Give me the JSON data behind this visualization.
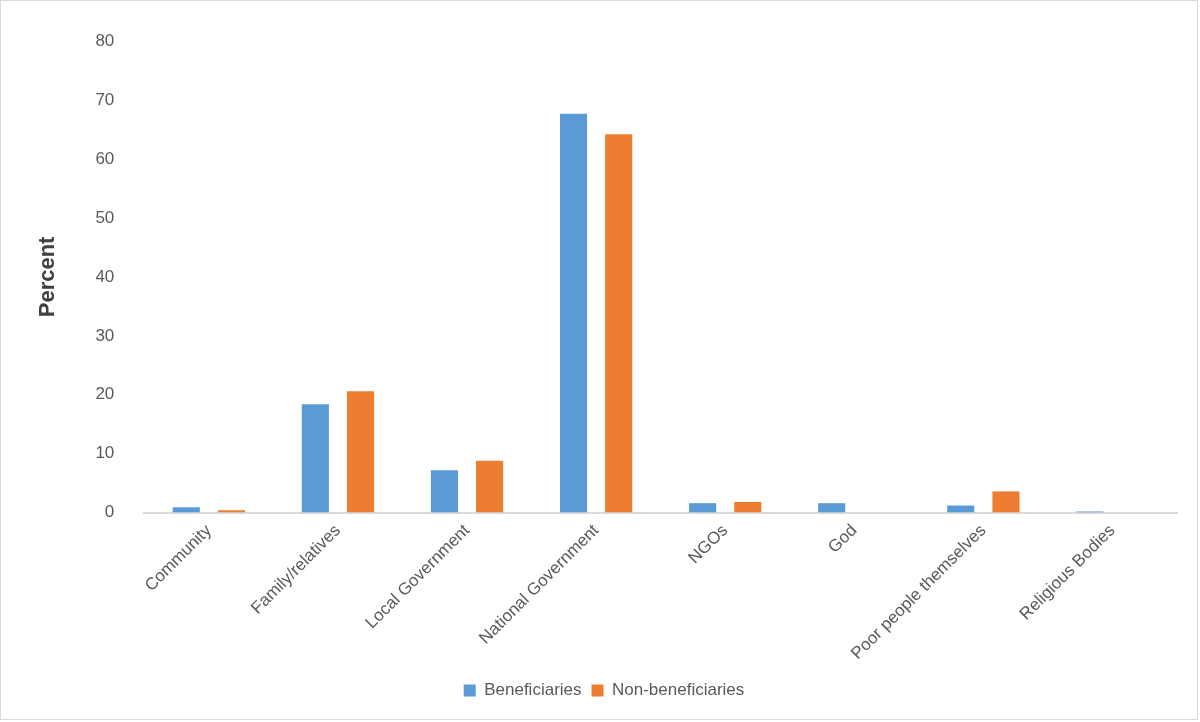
{
  "chart_data": {
    "type": "bar",
    "ylabel": "Percent",
    "categories": [
      "Community",
      "Family/relatives",
      "Local Government",
      "National Government",
      "NGOs",
      "God",
      "Poor people themselves",
      "Religious Bodies"
    ],
    "series": [
      {
        "name": "Beneficiaries",
        "color": "#5b9bd5",
        "values": [
          0.9,
          18.4,
          7.2,
          67.7,
          1.6,
          1.6,
          1.2,
          0.2
        ]
      },
      {
        "name": "Non-beneficiaries",
        "color": "#ed7d31",
        "values": [
          0.4,
          20.6,
          8.8,
          64.2,
          1.8,
          0,
          3.6,
          0
        ]
      }
    ],
    "ylim": [
      0,
      80
    ],
    "yticks": [
      0,
      10,
      20,
      30,
      40,
      50,
      60,
      70,
      80
    ],
    "grid": false,
    "legend": "bottom"
  }
}
